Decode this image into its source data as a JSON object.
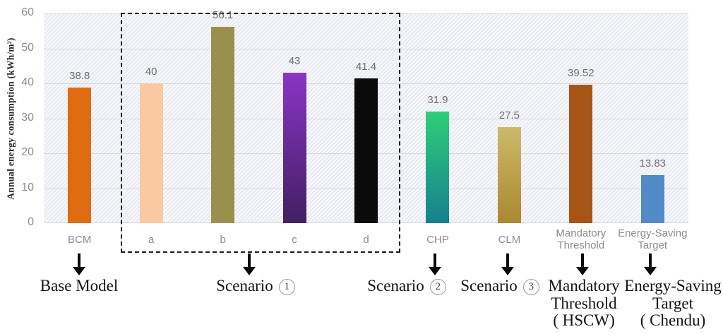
{
  "chart_data": {
    "type": "bar",
    "title": "",
    "ylabel": "Annual energy consumption (kWh/m²)",
    "xlabel": "",
    "ylim": [
      0,
      60
    ],
    "yticks": [
      0,
      10,
      20,
      30,
      40,
      50,
      60
    ],
    "grid": true,
    "legend": false,
    "plot_background": "hatched light blue-gray",
    "categories": [
      "BCM",
      "a",
      "b",
      "c",
      "d",
      "CHP",
      "CLM",
      "Mandatory Threshold",
      "Energy-Saving Target"
    ],
    "values": [
      38.8,
      40,
      56.1,
      43,
      41.4,
      31.9,
      27.5,
      39.52,
      13.83
    ],
    "value_labels": [
      "38.8",
      "40",
      "56.1",
      "43",
      "41.4",
      "31.9",
      "27.5",
      "39.52",
      "13.83"
    ],
    "bar_colors": [
      [
        "#e06c12"
      ],
      [
        "#f8c9a3"
      ],
      [
        "#99904e"
      ],
      [
        "#8a34c6",
        "#421f63"
      ],
      [
        "#0b0b0b"
      ],
      [
        "#2fcf78",
        "#16808f"
      ],
      [
        "#cdb96a",
        "#ab8830"
      ],
      [
        "#a65517"
      ],
      [
        "#5289c7"
      ]
    ],
    "dashed_group": {
      "members": [
        "a",
        "b",
        "c",
        "d"
      ],
      "style": "black dashed rectangle"
    }
  },
  "callouts": [
    {
      "id": "base-model",
      "lines": [
        "Base Model"
      ],
      "circled": null
    },
    {
      "id": "scenario-1",
      "lines": [
        "Scenario"
      ],
      "circled": "1"
    },
    {
      "id": "scenario-2",
      "lines": [
        "Scenario"
      ],
      "circled": "2"
    },
    {
      "id": "scenario-3",
      "lines": [
        "Scenario"
      ],
      "circled": "3"
    },
    {
      "id": "mandatory-threshold",
      "lines": [
        "Mandatory",
        "Threshold",
        "( HSCW)"
      ],
      "circled": null
    },
    {
      "id": "energy-saving-target",
      "lines": [
        "Energy-Saving",
        "Target",
        "( Chendu)"
      ],
      "circled": null
    }
  ]
}
